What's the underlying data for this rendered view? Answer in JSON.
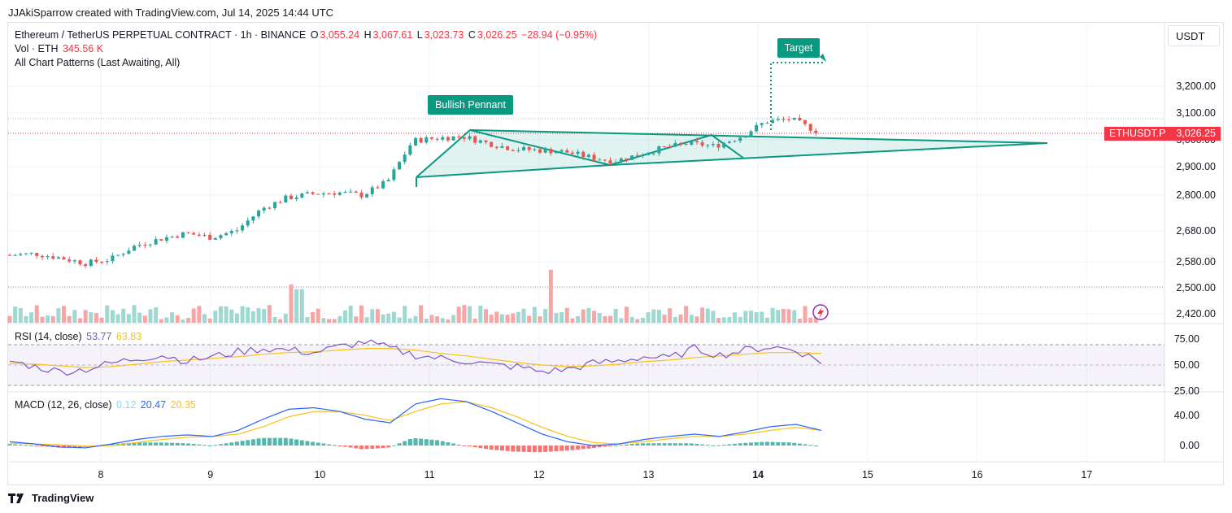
{
  "header_text": "JJAkiSparrow created with TradingView.com, Jul 14, 2025 14:44 UTC",
  "currency_button": "USDT",
  "legend": {
    "symbol_line": "Ethereum / TetherUS PERPETUAL CONTRACT · 1h · BINANCE",
    "o_label": "O",
    "o_value": "3,055.24",
    "h_label": "H",
    "h_value": "3,067.61",
    "l_label": "L",
    "l_value": "3,023.73",
    "c_label": "C",
    "c_value": "3,026.25",
    "change": "−28.94 (−0.95%)",
    "vol_label": "Vol · ETH",
    "vol_value": "345.56 K",
    "patterns": "All Chart Patterns (Last Awaiting, All)"
  },
  "pattern_label": "Bullish Pennant",
  "target_label": "Target",
  "price_tag": {
    "symbol": "ETHUSDT.P",
    "price": "3,026.25"
  },
  "rsi_legend": {
    "label": "RSI (14, close)",
    "rsi": "53.77",
    "ma": "63.83"
  },
  "macd_legend": {
    "label": "MACD (12, 26, close)",
    "hist": "0.12",
    "macd": "20.47",
    "signal": "20.35"
  },
  "footer_brand": "TradingView",
  "colors": {
    "up": "#26a69a",
    "down": "#ef5350",
    "pattern": "#089981",
    "rsi": "#7e57c2",
    "rsi_ma": "#fdd835",
    "macd": "#2962ff",
    "signal": "#ff9800",
    "price_line": "#f23645"
  },
  "chart_data": [
    {
      "type": "candlestick",
      "title": "Ethereum / TetherUS PERPETUAL CONTRACT · 1h · BINANCE",
      "y_ticks": [
        "3,200.00",
        "3,100.00",
        "2,900.00",
        "2,800.00",
        "2,680.00",
        "2,580.00",
        "2,500.00",
        "2,420.00"
      ],
      "x_ticks": [
        "8",
        "9",
        "10",
        "11",
        "12",
        "13",
        "14",
        "15",
        "16",
        "17"
      ],
      "series": [
        {
          "name": "close",
          "values": [
            2570,
            2575,
            2560,
            2540,
            2555,
            2605,
            2630,
            2650,
            2635,
            2660,
            2740,
            2780,
            2795,
            2800,
            2790,
            2840,
            2990,
            3000,
            3005,
            2980,
            2960,
            2955,
            2950,
            2930,
            2915,
            2940,
            2965,
            2980,
            2970,
            3005,
            3060,
            3070,
            3026
          ]
        }
      ],
      "annotations": [
        "Bullish Pennant",
        "Target"
      ],
      "pattern": {
        "name": "Bullish Pennant",
        "flag_pole_low": 2870,
        "upper_start": 3032,
        "lower_start": 2870,
        "apex": 2990,
        "target": 3280
      },
      "last_price": 3026.25,
      "ylim": [
        2400,
        3310
      ]
    },
    {
      "type": "line",
      "title": "RSI (14, close)",
      "y_ticks": [
        "75.00",
        "50.00",
        "25.00"
      ],
      "series": [
        {
          "name": "RSI",
          "values": [
            55,
            48,
            42,
            45,
            52,
            58,
            62,
            55,
            60,
            66,
            70,
            68,
            65,
            72,
            78,
            70,
            62,
            58,
            55,
            50,
            48,
            42,
            45,
            52,
            55,
            60,
            58,
            70,
            62,
            68,
            72,
            68,
            54
          ]
        },
        {
          "name": "MA",
          "values": [
            52,
            51,
            49,
            47,
            48,
            51,
            54,
            56,
            58,
            60,
            63,
            65,
            66,
            68,
            70,
            70,
            68,
            64,
            61,
            57,
            53,
            50,
            48,
            49,
            51,
            54,
            56,
            59,
            61,
            63,
            65,
            65,
            64
          ]
        }
      ],
      "ylim": [
        20,
        85
      ]
    },
    {
      "type": "line",
      "title": "MACD (12, 26, close)",
      "y_ticks": [
        "40.00",
        "0.00"
      ],
      "series": [
        {
          "name": "MACD",
          "values": [
            5,
            2,
            -2,
            -3,
            2,
            8,
            12,
            14,
            12,
            20,
            35,
            48,
            50,
            45,
            35,
            30,
            55,
            62,
            58,
            45,
            30,
            15,
            5,
            0,
            2,
            8,
            12,
            15,
            12,
            18,
            25,
            28,
            20
          ]
        },
        {
          "name": "Signal",
          "values": [
            3,
            2,
            1,
            -1,
            0,
            4,
            8,
            11,
            12,
            15,
            25,
            38,
            45,
            45,
            40,
            33,
            45,
            55,
            58,
            50,
            38,
            24,
            12,
            4,
            2,
            5,
            9,
            12,
            12,
            15,
            20,
            24,
            20
          ]
        }
      ],
      "ylim": [
        -15,
        70
      ]
    }
  ]
}
